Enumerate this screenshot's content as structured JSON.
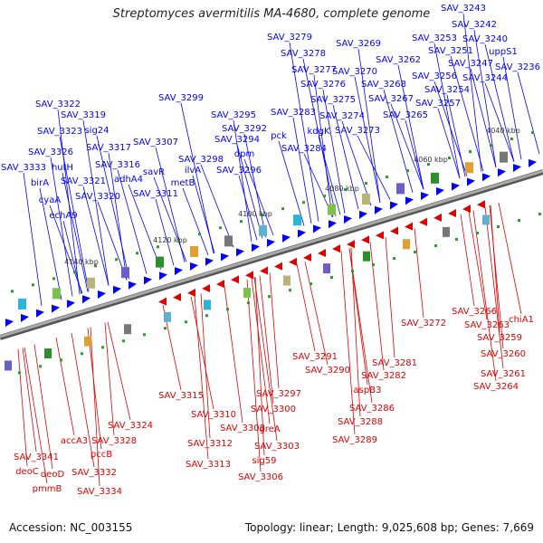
{
  "title": "Streptomyces avermitilis MA-4680, complete genome",
  "footer": {
    "accession": "Accession: NC_003155",
    "summary": "Topology: linear; Length: 9,025,608 bp; Genes: 7,669"
  },
  "colors": {
    "forward": "#0000ff",
    "reverse": "#e00000",
    "axis": "#888888",
    "tick_label": "#333333"
  },
  "ticks": [
    "4040 kbp",
    "4060 kbp",
    "4080 kbp",
    "4100 kbp",
    "4120 kbp",
    "4140 kbp"
  ],
  "forward_labels": [
    "SAV_3243",
    "SAV_3242",
    "SAV_3253",
    "SAV_3240",
    "SAV_3251",
    "uppS1",
    "SAV_3236",
    "SAV_3247",
    "SAV_3244",
    "SAV_3256",
    "SAV_3254",
    "SAV_3257",
    "SAV_3262",
    "SAV_3268",
    "SAV_3267",
    "SAV_3265",
    "SAV_3269",
    "SAV_3270",
    "SAV_3279",
    "SAV_3278",
    "SAV_3277",
    "SAV_3276",
    "SAV_3275",
    "SAV_3274",
    "SAV_3273",
    "SAV_3283",
    "kdgK",
    "pck",
    "SAV_3284",
    "SAV_3299",
    "SAV_3295",
    "SAV_3292",
    "SAV_3294",
    "dpm",
    "SAV_3298",
    "SAV_3296",
    "ilvA",
    "metB",
    "SAV_3307",
    "savR",
    "SAV_3311",
    "SAV_3322",
    "SAV_3319",
    "SAV_3323",
    "sig24",
    "SAV_3317",
    "SAV_3326",
    "hutH",
    "SAV_3316",
    "adhA4",
    "SAV_3333",
    "birA",
    "SAV_3321",
    "SAV_3320",
    "cyaA",
    "echA9"
  ],
  "reverse_labels": [
    "SAV_3272",
    "SAV_3266",
    "SAV_3263",
    "chiA1",
    "SAV_3259",
    "SAV_3260",
    "SAV_3261",
    "SAV_3264",
    "SAV_3281",
    "SAV_3282",
    "aspB3",
    "SAV_3286",
    "SAV_3288",
    "SAV_3289",
    "SAV_3291",
    "SAV_3290",
    "SAV_3297",
    "SAV_3300",
    "greA",
    "SAV_3303",
    "sig59",
    "SAV_3306",
    "SAV_3308",
    "SAV_3310",
    "SAV_3312",
    "SAV_3313",
    "SAV_3315",
    "SAV_3324",
    "SAV_3328",
    "pccB",
    "accA3",
    "SAV_3332",
    "SAV_3334",
    "SAV_3341",
    "deoD",
    "pmmB",
    "deoC"
  ]
}
